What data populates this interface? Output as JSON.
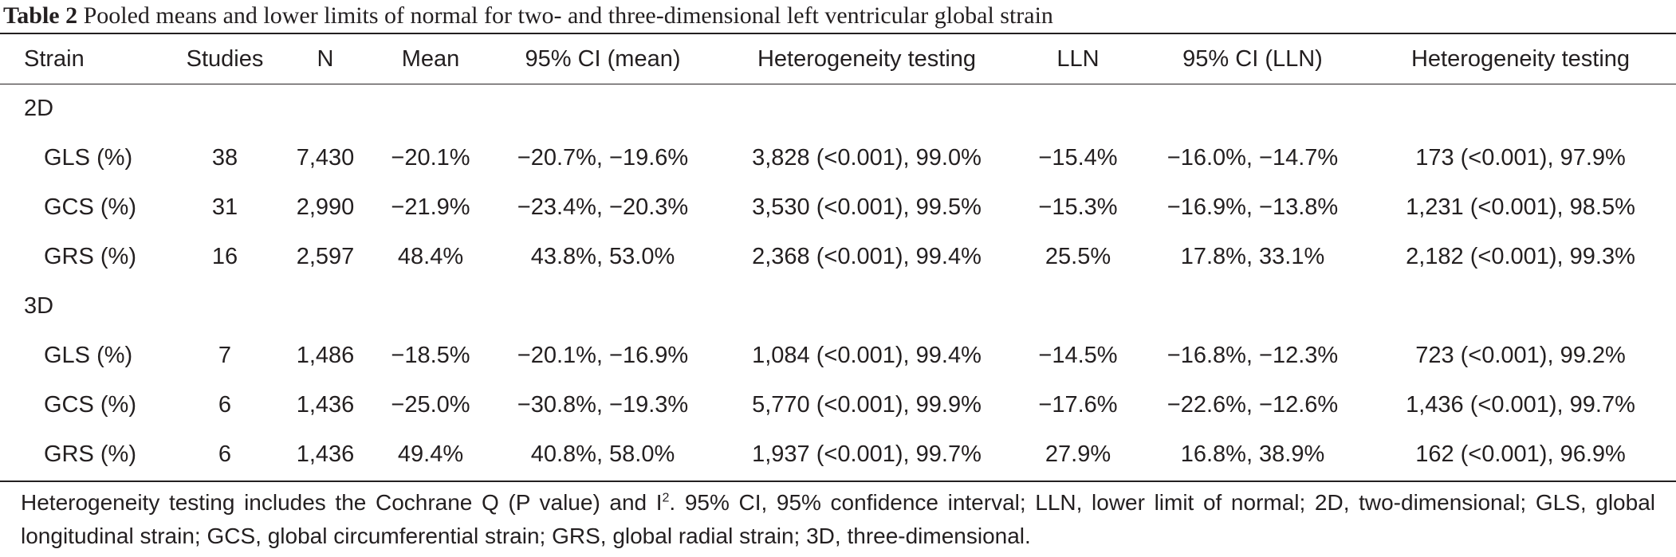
{
  "caption": {
    "label": "Table 2",
    "title": "Pooled means and lower limits of normal for two- and three-dimensional left ventricular global strain"
  },
  "columns": [
    "Strain",
    "Studies",
    "N",
    "Mean",
    "95% CI (mean)",
    "Heterogeneity testing",
    "LLN",
    "95% CI (LLN)",
    "Heterogeneity testing"
  ],
  "groups": [
    {
      "label": "2D",
      "rows": [
        [
          "GLS (%)",
          "38",
          "7,430",
          "−20.1%",
          "−20.7%, −19.6%",
          "3,828 (<0.001), 99.0%",
          "−15.4%",
          "−16.0%, −14.7%",
          "173 (<0.001), 97.9%"
        ],
        [
          "GCS (%)",
          "31",
          "2,990",
          "−21.9%",
          "−23.4%, −20.3%",
          "3,530 (<0.001), 99.5%",
          "−15.3%",
          "−16.9%, −13.8%",
          "1,231 (<0.001), 98.5%"
        ],
        [
          "GRS (%)",
          "16",
          "2,597",
          "48.4%",
          "43.8%, 53.0%",
          "2,368 (<0.001), 99.4%",
          "25.5%",
          "17.8%, 33.1%",
          "2,182 (<0.001), 99.3%"
        ]
      ]
    },
    {
      "label": "3D",
      "rows": [
        [
          "GLS (%)",
          "7",
          "1,486",
          "−18.5%",
          "−20.1%, −16.9%",
          "1,084 (<0.001), 99.4%",
          "−14.5%",
          "−16.8%, −12.3%",
          "723 (<0.001), 99.2%"
        ],
        [
          "GCS (%)",
          "6",
          "1,436",
          "−25.0%",
          "−30.8%, −19.3%",
          "5,770 (<0.001), 99.9%",
          "−17.6%",
          "−22.6%, −12.6%",
          "1,436 (<0.001), 99.7%"
        ],
        [
          "GRS (%)",
          "6",
          "1,436",
          "49.4%",
          "40.8%, 58.0%",
          "1,937 (<0.001), 99.7%",
          "27.9%",
          "16.8%, 38.9%",
          "162 (<0.001), 96.9%"
        ]
      ]
    }
  ],
  "footnote": {
    "part1": "Heterogeneity testing includes the Cochrane Q (P value) and I",
    "sup": "2",
    "part2": ". 95% CI, 95% confidence interval; LLN, lower limit of normal; 2D, two-dimensional; GLS, global longitudinal strain; GCS, global circumferential strain; GRS, global radial strain; 3D, three-dimensional."
  }
}
